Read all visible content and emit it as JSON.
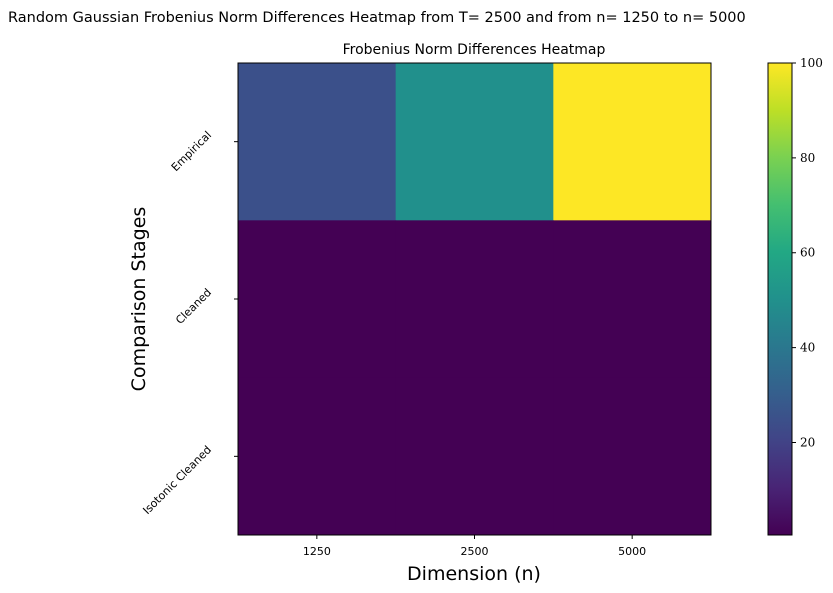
{
  "chart_data": {
    "type": "heatmap",
    "suptitle": "Random Gaussian Frobenius Norm Differences Heatmap from T= 2500 and from n= 1250 to n= 5000",
    "title": "Frobenius Norm Differences Heatmap",
    "xlabel": "Dimension (n)",
    "ylabel": "Comparison Stages",
    "x_categories": [
      "1250",
      "2500",
      "5000"
    ],
    "y_categories": [
      "Empirical",
      "Cleaned",
      "Isotonic Cleaned"
    ],
    "values": [
      [
        25,
        50,
        100
      ],
      [
        0.5,
        0.5,
        0.5
      ],
      [
        0.5,
        0.5,
        0.5
      ]
    ],
    "colormap": "viridis",
    "colorbar": {
      "range": [
        0.5,
        100
      ],
      "ticks": [
        20,
        40,
        60,
        80,
        100
      ]
    }
  }
}
